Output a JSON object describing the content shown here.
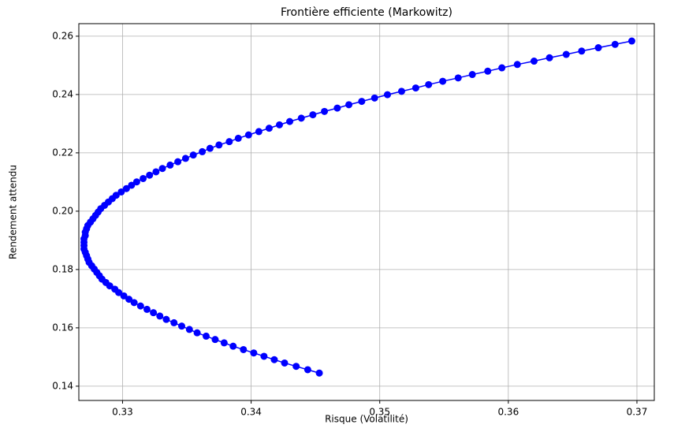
{
  "chart_data": {
    "type": "line",
    "title": "Frontière efficiente (Markowitz)",
    "xlabel": "Risque (Volatilité)",
    "ylabel": "Rendement attendu",
    "color": "#0000ff",
    "markers": true,
    "grid": true,
    "x": [
      0.3453,
      0.3444,
      0.3435,
      0.3426,
      0.3418,
      0.341,
      0.3402,
      0.3394,
      0.3386,
      0.3379,
      0.3372,
      0.3365,
      0.3358,
      0.3352,
      0.3346,
      0.334,
      0.3334,
      0.3329,
      0.3324,
      0.3319,
      0.3314,
      0.3309,
      0.3305,
      0.3301,
      0.3297,
      0.3294,
      0.329,
      0.3287,
      0.3284,
      0.3282,
      0.328,
      0.3278,
      0.3276,
      0.3274,
      0.3273,
      0.3272,
      0.3271,
      0.327,
      0.327,
      0.327,
      0.327,
      0.3271,
      0.3271,
      0.3272,
      0.3273,
      0.3275,
      0.3277,
      0.3279,
      0.3281,
      0.3283,
      0.3286,
      0.3289,
      0.3292,
      0.3295,
      0.3299,
      0.3303,
      0.3307,
      0.3311,
      0.3316,
      0.3321,
      0.3326,
      0.3331,
      0.3337,
      0.3343,
      0.3349,
      0.3355,
      0.3362,
      0.3368,
      0.3375,
      0.3383,
      0.339,
      0.3398,
      0.3406,
      0.3414,
      0.3422,
      0.343,
      0.3439,
      0.3448,
      0.3457,
      0.3467,
      0.3476,
      0.3486,
      0.3496,
      0.3506,
      0.3517,
      0.3528,
      0.3538,
      0.3549,
      0.3561,
      0.3572,
      0.3584,
      0.3595,
      0.3607,
      0.362,
      0.3632,
      0.3645,
      0.3657,
      0.367,
      0.3683,
      0.3696
    ],
    "values": [
      0.1445,
      0.14565,
      0.1468,
      0.14795,
      0.1491,
      0.15025,
      0.1514,
      0.15255,
      0.1537,
      0.15485,
      0.156,
      0.15715,
      0.1583,
      0.15945,
      0.1606,
      0.16175,
      0.1629,
      0.16405,
      0.1652,
      0.16635,
      0.1675,
      0.16865,
      0.1698,
      0.17095,
      0.1721,
      0.17325,
      0.1744,
      0.17555,
      0.1767,
      0.17785,
      0.179,
      0.18015,
      0.1813,
      0.18245,
      0.1836,
      0.18475,
      0.1859,
      0.18705,
      0.1882,
      0.18935,
      0.1905,
      0.19165,
      0.1928,
      0.19395,
      0.1951,
      0.19625,
      0.1974,
      0.19855,
      0.1997,
      0.20085,
      0.202,
      0.20315,
      0.2043,
      0.20545,
      0.2066,
      0.20775,
      0.2089,
      0.21005,
      0.2112,
      0.21235,
      0.2135,
      0.21465,
      0.2158,
      0.21695,
      0.2181,
      0.21925,
      0.2204,
      0.22155,
      0.2227,
      0.22385,
      0.225,
      0.22615,
      0.2273,
      0.22845,
      0.2296,
      0.23075,
      0.2319,
      0.23305,
      0.2342,
      0.23535,
      0.2365,
      0.23765,
      0.2388,
      0.23995,
      0.2411,
      0.24225,
      0.2434,
      0.24455,
      0.2457,
      0.24685,
      0.248,
      0.24915,
      0.2503,
      0.25145,
      0.2526,
      0.25375,
      0.2549,
      0.25605,
      0.2572,
      0.25835
    ],
    "xlim": [
      0.3266,
      0.37135
    ],
    "xticks": [
      0.33,
      0.34,
      0.35,
      0.36,
      0.37
    ],
    "ylim": [
      0.1351,
      0.2643
    ],
    "yticks": [
      0.14,
      0.16,
      0.18,
      {
        "value": 0.2,
        "label": "0.20"
      },
      0.22,
      0.24,
      0.26
    ]
  }
}
